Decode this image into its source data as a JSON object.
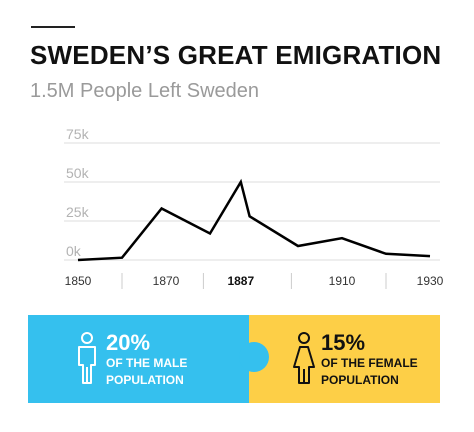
{
  "header": {
    "title": "SWEDEN’S GREAT EMIGRATION",
    "subtitle": "1.5M People Left Sweden"
  },
  "chart_data": {
    "type": "line",
    "title": "SWEDEN’S GREAT EMIGRATION",
    "subtitle": "1.5M People Left Sweden",
    "xlabel": "",
    "ylabel": "",
    "x_ticks": [
      "1850",
      "1870",
      "1887",
      "1910",
      "1930"
    ],
    "highlight_tick": "1887",
    "y_ticks": [
      "0k",
      "25k",
      "50k",
      "75k"
    ],
    "ylim": [
      0,
      75000
    ],
    "xlim": [
      1850,
      1930
    ],
    "grid": true,
    "series": [
      {
        "x": [
          1850,
          1860,
          1869,
          1880,
          1887,
          1889,
          1900,
          1910,
          1920,
          1930
        ],
        "y": [
          0,
          1500,
          33000,
          17000,
          50000,
          28000,
          9000,
          14000,
          4000,
          2500
        ]
      }
    ]
  },
  "stats": [
    {
      "percent": "20%",
      "label_line1": "OF THE MALE",
      "label_line2": "POPULATION",
      "icon": "male-person-icon",
      "bg": "#35c0ee"
    },
    {
      "percent": "15%",
      "label_line1": "OF THE FEMALE",
      "label_line2": "POPULATION",
      "icon": "female-person-icon",
      "bg": "#fdcf47"
    }
  ],
  "colors": {
    "line": "#000000",
    "grid": "#dcdcdc",
    "male_panel": "#35c0ee",
    "female_panel": "#fdcf47"
  }
}
